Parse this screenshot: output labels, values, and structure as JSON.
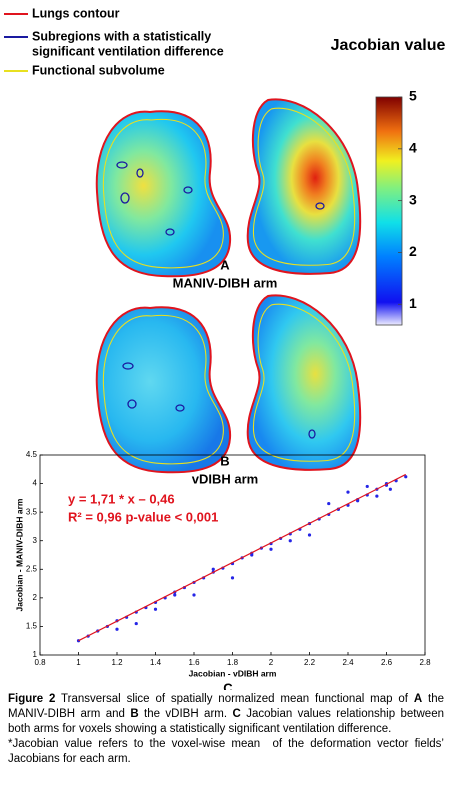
{
  "legend": [
    {
      "lines": [
        "Lungs contour"
      ],
      "color": "#e0141e"
    },
    {
      "lines": [
        "Subregions with a statistically",
        "significant ventilation difference"
      ],
      "color": "#1a1aa0"
    },
    {
      "lines": [
        "Functional subvolume"
      ],
      "color": "#e8e020"
    }
  ],
  "colorbar": {
    "title": "Jacobian value",
    "range": [
      0.6,
      5
    ],
    "ticks": [
      1,
      2,
      3,
      4,
      5
    ]
  },
  "panels": {
    "a": {
      "letter": "A",
      "label": "MANIV-DIBH arm"
    },
    "b": {
      "letter": "B",
      "label": "vDIBH arm"
    },
    "c": {
      "letter": "C"
    }
  },
  "chart_data": {
    "type": "scatter",
    "x_label": "Jacobian - vDIBH arm",
    "y_label": "Jacobian - MANIV-DIBH arm",
    "xlim": [
      0.8,
      2.8
    ],
    "ylim": [
      1,
      4.5
    ],
    "xticks": [
      0.8,
      1,
      1.2,
      1.4,
      1.6,
      1.8,
      2,
      2.2,
      2.4,
      2.6,
      2.8
    ],
    "yticks": [
      1,
      1.5,
      2,
      2.5,
      3,
      3.5,
      4,
      4.5
    ],
    "annotations": [
      "y = 1,71 * x – 0,46",
      "R² = 0,96 p-value < 0,001"
    ],
    "annotation_color": "#e0141e",
    "series": [
      {
        "type": "scatter",
        "color": "#2525e6",
        "x": [
          1.0,
          1.05,
          1.1,
          1.15,
          1.2,
          1.25,
          1.3,
          1.35,
          1.4,
          1.45,
          1.5,
          1.55,
          1.6,
          1.65,
          1.7,
          1.75,
          1.8,
          1.85,
          1.9,
          1.95,
          2.0,
          2.05,
          2.1,
          2.15,
          2.2,
          2.25,
          2.3,
          2.35,
          2.4,
          2.45,
          2.5,
          2.55,
          2.6,
          2.65,
          2.7,
          1.2,
          1.3,
          1.4,
          1.5,
          1.6,
          1.7,
          1.8,
          1.9,
          2.0,
          2.1,
          2.2,
          2.3,
          2.4,
          2.5,
          2.6,
          2.35,
          2.45,
          2.55,
          2.62
        ],
        "values": [
          1.25,
          1.33,
          1.42,
          1.5,
          1.6,
          1.66,
          1.75,
          1.83,
          1.92,
          2.0,
          2.1,
          2.18,
          2.27,
          2.35,
          2.45,
          2.52,
          2.6,
          2.7,
          2.78,
          2.87,
          2.95,
          3.04,
          3.12,
          3.2,
          3.3,
          3.38,
          3.46,
          3.55,
          3.62,
          3.72,
          3.8,
          3.9,
          3.97,
          4.05,
          4.12,
          1.45,
          1.55,
          1.8,
          2.05,
          2.05,
          2.5,
          2.35,
          2.75,
          2.85,
          3.0,
          3.1,
          3.65,
          3.85,
          3.95,
          4.0,
          3.55,
          3.7,
          3.78,
          3.9
        ]
      },
      {
        "type": "line",
        "color": "#e0141e",
        "x": [
          1.0,
          2.7
        ],
        "values": [
          1.25,
          4.16
        ]
      }
    ]
  },
  "caption": {
    "segments": [
      {
        "text": "Figure 2",
        "bold": true
      },
      {
        "text": " Transversal slice of spatially normalized mean functional map of ",
        "bold": false
      },
      {
        "text": "A",
        "bold": true
      },
      {
        "text": " the MANIV-DIBH arm and ",
        "bold": false
      },
      {
        "text": "B",
        "bold": true
      },
      {
        "text": " the vDIBH arm. ",
        "bold": false
      },
      {
        "text": "C",
        "bold": true
      },
      {
        "text": " Jacobian values relationship between both arms for voxels showing a statistically significant ventilation difference.",
        "bold": false
      }
    ],
    "note": "*Jacobian value refers to the voxel-wise mean  of the deformation vector fields’ Jacobians for each arm."
  }
}
